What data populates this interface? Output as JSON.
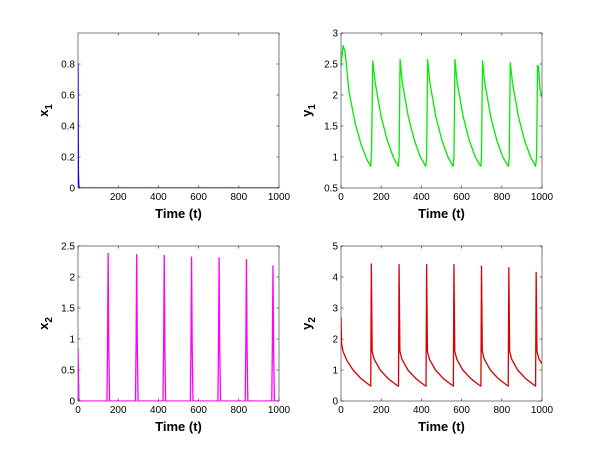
{
  "chart_data": [
    {
      "type": "line",
      "xlabel": "Time (t)",
      "ylabel": {
        "base": "x",
        "sub": "1"
      },
      "xlim": [
        0,
        1000
      ],
      "ylim": [
        0,
        1.0
      ],
      "xticks": [
        "200",
        "400",
        "600",
        "800",
        "1000"
      ],
      "xtick_values": [
        200,
        400,
        600,
        800,
        1000
      ],
      "yticks": [
        "0",
        "0.2",
        "0.4",
        "0.6",
        "0.8"
      ],
      "ytick_values": [
        0,
        0.2,
        0.4,
        0.6,
        0.8
      ],
      "grid": false,
      "color": "#0000ff",
      "series": [
        {
          "x": [
            0,
            1,
            2,
            4,
            10,
            50,
            200,
            400,
            600,
            800,
            1000
          ],
          "y": [
            0.8,
            0.4,
            0.1,
            0.01,
            0.0,
            0.0,
            0.0,
            0.0,
            0.0,
            0.0,
            0.0
          ]
        }
      ]
    },
    {
      "type": "line",
      "xlabel": "Time (t)",
      "ylabel": {
        "base": "y",
        "sub": "1"
      },
      "xlim": [
        0,
        1000
      ],
      "ylim": [
        0.5,
        3.0
      ],
      "xticks": [
        "0",
        "200",
        "400",
        "600",
        "800",
        "1000"
      ],
      "xtick_values": [
        0,
        200,
        400,
        600,
        800,
        1000
      ],
      "yticks": [
        "0.5",
        "1",
        "1.5",
        "2",
        "2.5",
        "3"
      ],
      "ytick_values": [
        0.5,
        1,
        1.5,
        2,
        2.5,
        3
      ],
      "grid": false,
      "color": "#00ee00",
      "series": [
        {
          "x": [
            0,
            10,
            20,
            40,
            70,
            100,
            130,
            148,
            152,
            158,
            170,
            200,
            230,
            260,
            285,
            289,
            294,
            305,
            335,
            365,
            395,
            422,
            426,
            431,
            442,
            472,
            502,
            532,
            558,
            562,
            567,
            578,
            608,
            638,
            668,
            695,
            699,
            704,
            715,
            745,
            775,
            805,
            833,
            837,
            842,
            853,
            883,
            913,
            943,
            968,
            973,
            978,
            983,
            990,
            1000
          ],
          "y": [
            2.45,
            2.8,
            2.7,
            2.05,
            1.55,
            1.2,
            0.95,
            0.85,
            1.1,
            2.55,
            2.2,
            1.65,
            1.27,
            1.0,
            0.85,
            1.0,
            2.57,
            2.2,
            1.65,
            1.27,
            1.0,
            0.85,
            1.0,
            2.57,
            2.2,
            1.65,
            1.27,
            1.0,
            0.85,
            1.0,
            2.57,
            2.2,
            1.65,
            1.27,
            1.0,
            0.85,
            1.0,
            2.55,
            2.2,
            1.65,
            1.27,
            1.0,
            0.85,
            1.0,
            2.52,
            2.2,
            1.65,
            1.27,
            1.0,
            0.85,
            1.0,
            2.48,
            2.45,
            2.1,
            1.95
          ]
        }
      ]
    },
    {
      "type": "line",
      "xlabel": "Time (t)",
      "ylabel": {
        "base": "x",
        "sub": "2"
      },
      "xlim": [
        0,
        1000
      ],
      "ylim": [
        0,
        2.5
      ],
      "xticks": [
        "0",
        "200",
        "400",
        "600",
        "800",
        "1000"
      ],
      "xtick_values": [
        0,
        200,
        400,
        600,
        800,
        1000
      ],
      "yticks": [
        "0",
        "0.5",
        "1",
        "1.5",
        "2",
        "2.5"
      ],
      "ytick_values": [
        0,
        0.5,
        1,
        1.5,
        2,
        2.5
      ],
      "grid": false,
      "color": "#ff00ff",
      "series": [
        {
          "x": [
            0,
            4,
            8,
            144,
            147,
            150,
            153,
            157,
            286,
            289,
            292,
            295,
            299,
            423,
            426,
            429,
            432,
            436,
            559,
            562,
            565,
            568,
            572,
            696,
            699,
            702,
            705,
            709,
            832,
            835,
            838,
            841,
            845,
            964,
            967,
            970,
            973,
            977,
            1000
          ],
          "y": [
            0.85,
            0.05,
            0.0,
            0.0,
            0.9,
            2.38,
            0.9,
            0.0,
            0.0,
            0.9,
            2.36,
            0.9,
            0.0,
            0.0,
            0.9,
            2.35,
            0.9,
            0.0,
            0.0,
            0.9,
            2.32,
            0.9,
            0.0,
            0.0,
            0.9,
            2.31,
            0.9,
            0.0,
            0.0,
            0.9,
            2.28,
            0.9,
            0.0,
            0.0,
            0.9,
            2.18,
            0.9,
            0.0,
            0.0
          ]
        }
      ]
    },
    {
      "type": "line",
      "xlabel": "Time (t)",
      "ylabel": {
        "base": "y",
        "sub": "2"
      },
      "xlim": [
        0,
        1000
      ],
      "ylim": [
        0,
        5
      ],
      "xticks": [
        "0",
        "200",
        "400",
        "600",
        "800",
        "1000"
      ],
      "xtick_values": [
        0,
        200,
        400,
        600,
        800,
        1000
      ],
      "yticks": [
        "0",
        "1",
        "2",
        "3",
        "4",
        "5"
      ],
      "ytick_values": [
        0,
        1,
        2,
        3,
        4,
        5
      ],
      "grid": false,
      "color": "#dd0000",
      "series": [
        {
          "x": [
            0,
            3,
            10,
            30,
            60,
            100,
            140,
            148,
            151,
            155,
            165,
            195,
            235,
            275,
            286,
            289,
            293,
            303,
            333,
            373,
            413,
            423,
            426,
            430,
            440,
            470,
            510,
            550,
            559,
            562,
            566,
            576,
            606,
            646,
            686,
            696,
            699,
            703,
            713,
            743,
            783,
            823,
            832,
            835,
            839,
            849,
            879,
            919,
            959,
            968,
            971,
            975,
            985,
            1000
          ],
          "y": [
            2.7,
            1.85,
            1.6,
            1.3,
            1.0,
            0.72,
            0.52,
            0.48,
            4.42,
            1.6,
            1.35,
            1.0,
            0.72,
            0.52,
            0.48,
            4.4,
            1.6,
            1.35,
            1.0,
            0.72,
            0.52,
            0.48,
            4.4,
            1.6,
            1.35,
            1.0,
            0.72,
            0.52,
            0.48,
            4.4,
            1.6,
            1.35,
            1.0,
            0.72,
            0.52,
            0.48,
            4.35,
            1.6,
            1.35,
            1.0,
            0.72,
            0.52,
            0.48,
            4.3,
            1.6,
            1.35,
            1.0,
            0.72,
            0.52,
            0.48,
            4.15,
            1.6,
            1.35,
            1.2
          ]
        }
      ]
    }
  ]
}
